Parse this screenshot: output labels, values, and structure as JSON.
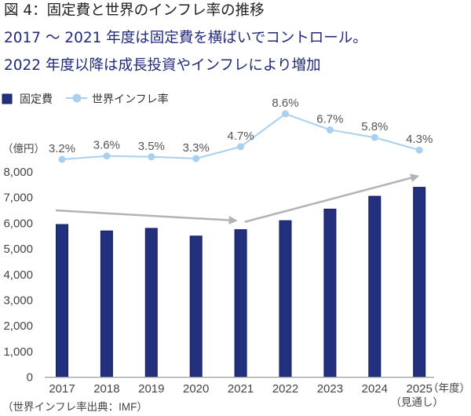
{
  "figure": {
    "title": "図 4：固定費と世界のインフレ率の推移",
    "headline_lines": [
      "2017 ～ 2021 年度は固定費を横ばいでコントロール。",
      "2022 年度以降は成長投資やインフレにより増加"
    ],
    "source_note": "（世界インフレ率出典：IMF）"
  },
  "colors": {
    "bar": "#22307d",
    "bar_edge": "#151d5c",
    "line": "#a9d0ef",
    "arrow": "#b3b3b3",
    "axis": "#9a9a9a",
    "headline": "#1f2a7c",
    "title": "#222222"
  },
  "chart_data": {
    "type": "bar",
    "combo": [
      "bar",
      "line"
    ],
    "title": "図 4：固定費と世界のインフレ率の推移",
    "categories": [
      "2017",
      "2018",
      "2019",
      "2020",
      "2021",
      "2022",
      "2023",
      "2024",
      "2025"
    ],
    "category_sublabels": [
      "",
      "",
      "",
      "",
      "",
      "",
      "",
      "",
      "（見通し）"
    ],
    "xlabel": "（年度）",
    "ylabel": "（億円）",
    "ylim": [
      0,
      8000
    ],
    "yticks": [
      0,
      1000,
      2000,
      3000,
      4000,
      5000,
      6000,
      7000,
      8000
    ],
    "ytick_labels": [
      "0",
      "1,000",
      "2,000",
      "3,000",
      "4,000",
      "5,000",
      "6,000",
      "7,000",
      "8,000"
    ],
    "grid": false,
    "legend": {
      "position": "top-left",
      "entries": [
        {
          "name": "固定費",
          "marker": "square"
        },
        {
          "name": "世界インフレ率",
          "marker": "line-with-circle"
        }
      ]
    },
    "series": [
      {
        "name": "固定費",
        "type": "bar",
        "unit": "億円",
        "values": [
          5950,
          5700,
          5800,
          5500,
          5750,
          6100,
          6550,
          7050,
          7400
        ]
      },
      {
        "name": "世界インフレ率",
        "type": "line",
        "unit": "%",
        "axis": "secondary-hidden",
        "values": [
          3.2,
          3.6,
          3.5,
          3.3,
          4.7,
          8.6,
          6.7,
          5.8,
          4.3
        ],
        "data_labels": [
          "3.2%",
          "3.6%",
          "3.5%",
          "3.3%",
          "4.7%",
          "8.6%",
          "6.7%",
          "5.8%",
          "4.3%"
        ]
      }
    ],
    "annotations": [
      {
        "type": "arrow",
        "meaning": "flat 2017-2021",
        "from": {
          "x_index": -0.14,
          "y": 6500
        },
        "to": {
          "x_index": 3.93,
          "y": 6100
        }
      },
      {
        "type": "arrow",
        "meaning": "increase 2022-2025",
        "from": {
          "x_index": 4.09,
          "y": 6050
        },
        "to": {
          "x_index": 8.0,
          "y": 7850
        }
      }
    ]
  }
}
